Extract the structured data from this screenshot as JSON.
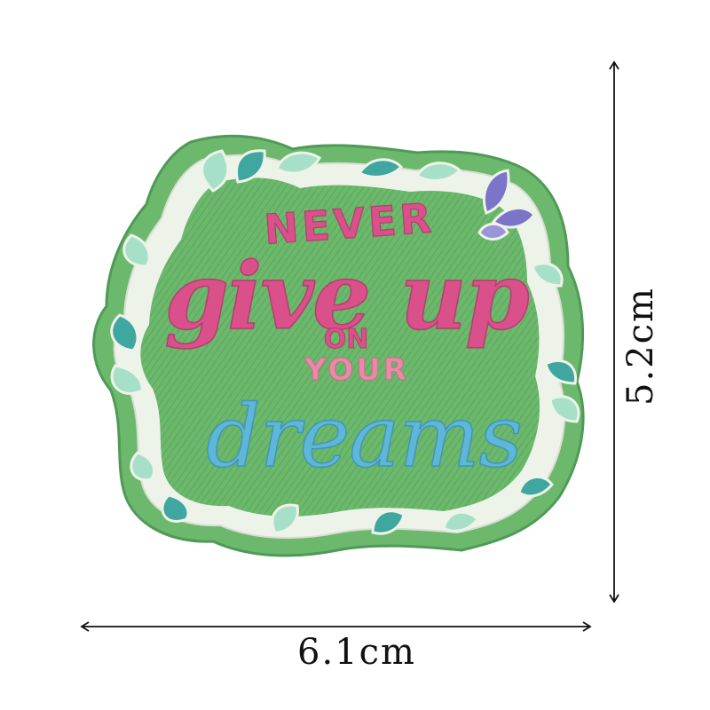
{
  "patch": {
    "line1": "NEVER",
    "line2": "give up",
    "line3": "ON",
    "line4": "YOUR",
    "line5": "dreams"
  },
  "dimensions": {
    "width": "6.1cm",
    "height": "5.2cm"
  },
  "colors": {
    "patch_green": "#6cb86c",
    "border_white": "#eef3ea",
    "leaf_mint": "#a6e0c8",
    "leaf_teal": "#3fa7a0",
    "pink": "#d9508a",
    "light_pink": "#e98aa8",
    "blue": "#5fb7d8",
    "purple": "#7b74c9"
  }
}
